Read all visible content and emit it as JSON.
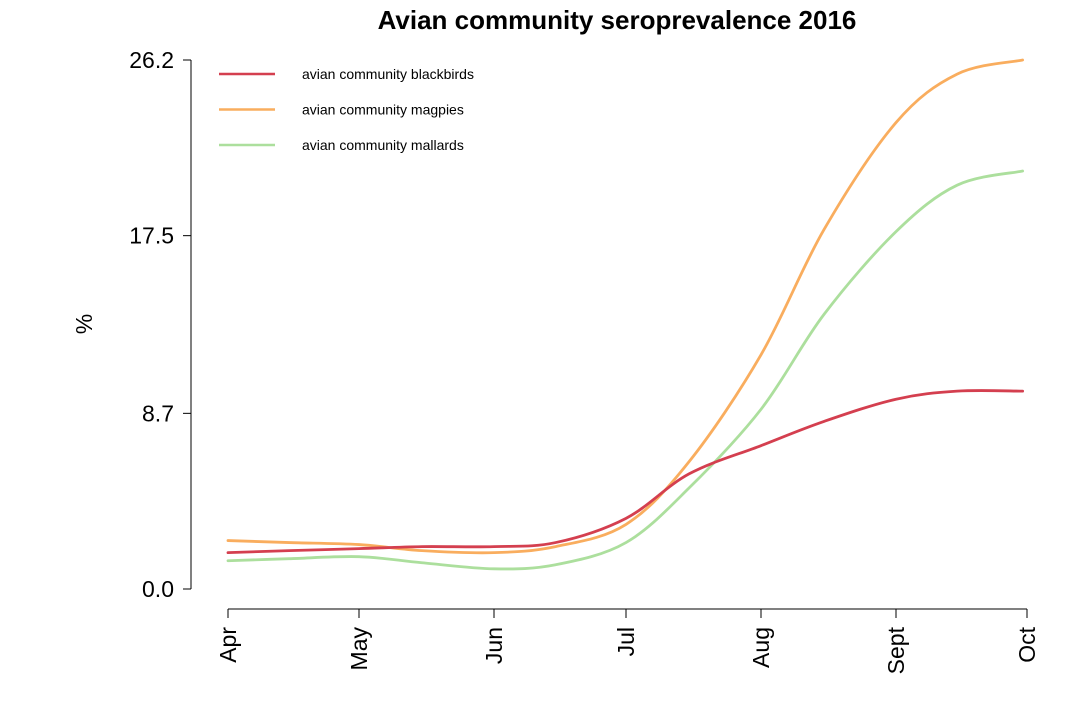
{
  "chart_data": {
    "type": "line",
    "title": "Avian community seroprevalence 2016",
    "xlabel": "",
    "ylabel": "%",
    "x_ticks": [
      "Apr",
      "May",
      "Jun",
      "Jul",
      "Aug",
      "Sept",
      "Oct"
    ],
    "y_ticks": [
      "0.0",
      "8.7",
      "17.5",
      "26.2"
    ],
    "ylim": [
      0,
      26.2
    ],
    "grid": false,
    "legend_position": "top-left",
    "x": [
      "Apr 1",
      "Apr 15",
      "May 1",
      "May 15",
      "Jun 1",
      "Jun 15",
      "Jul 1",
      "Jul 15",
      "Aug 1",
      "Aug 15",
      "Sept 1",
      "Sept 15",
      "Sept 30"
    ],
    "series": [
      {
        "name": "avian community blackbirds",
        "color": "#d43f4f",
        "values": [
          1.8,
          1.9,
          2.0,
          2.1,
          2.1,
          2.3,
          3.5,
          5.7,
          7.1,
          8.3,
          9.4,
          9.8,
          9.8
        ]
      },
      {
        "name": "avian community magpies",
        "color": "#f9ad5e",
        "values": [
          2.4,
          2.3,
          2.2,
          1.9,
          1.8,
          2.1,
          3.2,
          6.3,
          11.6,
          17.8,
          23.1,
          25.5,
          26.2
        ]
      },
      {
        "name": "avian community mallards",
        "color": "#acdf9d",
        "values": [
          1.4,
          1.5,
          1.6,
          1.3,
          1.0,
          1.2,
          2.3,
          5.0,
          8.9,
          13.6,
          17.7,
          20.0,
          20.7
        ]
      }
    ]
  }
}
